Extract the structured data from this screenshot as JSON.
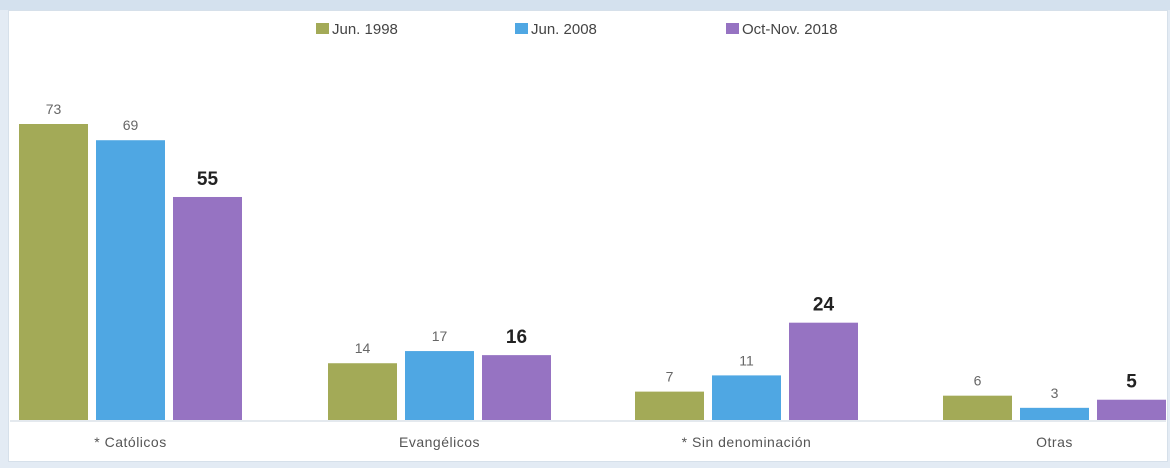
{
  "chart_data": {
    "type": "bar",
    "categories": [
      "* Católicos",
      "Evangélicos",
      "* Sin denominación",
      "Otras"
    ],
    "series": [
      {
        "name": "Jun. 1998",
        "color": "#a3aa57",
        "values": [
          73,
          14,
          7,
          6
        ]
      },
      {
        "name": "Jun. 2008",
        "color": "#4fa7e3",
        "values": [
          69,
          17,
          11,
          3
        ]
      },
      {
        "name": "Oct-Nov. 2018",
        "color": "#9673c2",
        "values": [
          55,
          16,
          24,
          5
        ]
      }
    ],
    "value_labels": {
      "Jun. 1998": [
        "73",
        "14",
        "7",
        "6"
      ],
      "Jun. 2008": [
        "69",
        "17",
        "11",
        "3"
      ],
      "Oct-Nov. 2018": [
        "55",
        "16",
        "24",
        "5"
      ]
    },
    "emphasized_series": "Oct-Nov. 2018",
    "ylim": [
      0,
      75
    ],
    "legend": "top-center",
    "grid": false
  }
}
